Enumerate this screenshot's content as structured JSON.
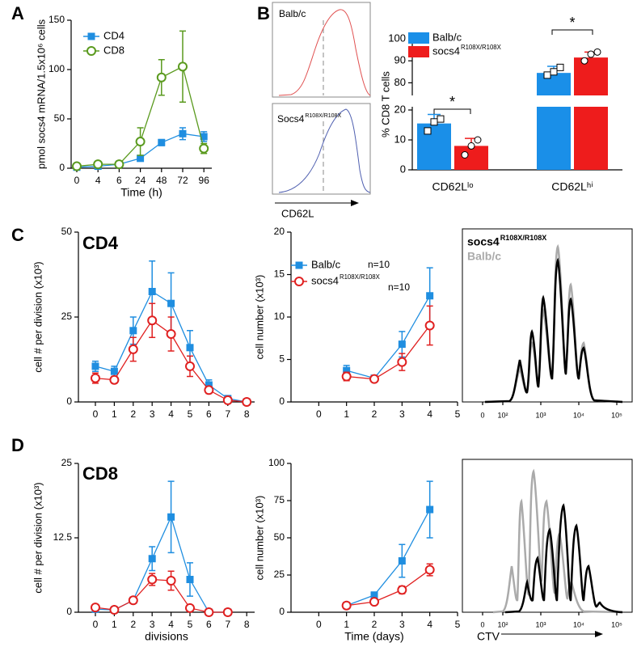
{
  "chart_data": [
    {
      "type": "line",
      "panel": "A",
      "ylabel": "pmol socs4 mRNA/1.5x10⁶ cells",
      "xlabel": "Time (h)",
      "categories": [
        "0",
        "4",
        "6",
        "24",
        "48",
        "72",
        "96"
      ],
      "ylim": [
        0,
        150
      ],
      "yticks": [
        0,
        50,
        100,
        150
      ],
      "legend": true,
      "series": [
        {
          "name": "CD4",
          "color": "#1f8ee0",
          "marker": "square",
          "values": [
            1,
            2,
            4,
            10,
            26,
            35,
            32
          ],
          "errors": [
            1,
            1,
            1,
            2,
            3,
            6,
            5
          ]
        },
        {
          "name": "CD8",
          "color": "#5a9a1e",
          "marker": "circle",
          "values": [
            2,
            4,
            4,
            27,
            92,
            103,
            20
          ],
          "errors": [
            1,
            1,
            1,
            14,
            18,
            36,
            5
          ]
        }
      ]
    },
    {
      "type": "bar",
      "panel": "B",
      "ylabel": "% CD8 T cells",
      "categories": [
        "CD62Lˡᵒ",
        "CD62Lʰⁱ"
      ],
      "ylim_lower": [
        0,
        20
      ],
      "yticks_lower": [
        0,
        10,
        20
      ],
      "ylim_upper": [
        75,
        100
      ],
      "yticks_upper": [
        80,
        90,
        100
      ],
      "annotations": [
        "*",
        "*"
      ],
      "series": [
        {
          "name": "Balb/c",
          "color": "#1a8fe8",
          "values": [
            15.5,
            84.5
          ],
          "errors": [
            3,
            3
          ],
          "points": [
            [
              13,
              16,
              17
            ],
            [
              83.5,
              85,
              87
            ]
          ]
        },
        {
          "name": "socs4",
          "name_sup": "R108X/R108X",
          "color": "#ee1c1c",
          "values": [
            8,
            91.5
          ],
          "errors": [
            2.5,
            2.5
          ],
          "points": [
            [
              5,
              8,
              10
            ],
            [
              90,
              93,
              94
            ]
          ]
        }
      ]
    },
    {
      "type": "line",
      "panel": "C",
      "title": "CD4",
      "ylabel": "cell # per division (x10³)",
      "categories": [
        "0",
        "1",
        "2",
        "3",
        "4",
        "5",
        "6",
        "7",
        "8"
      ],
      "ylim": [
        0,
        50
      ],
      "yticks": [
        0,
        25,
        50
      ],
      "series": [
        {
          "name": "Balb/c",
          "color": "#1f8ee0",
          "marker": "square",
          "values": [
            10.5,
            9,
            21,
            32.5,
            29,
            16,
            5,
            1,
            0
          ],
          "errors": [
            1.5,
            1.5,
            4,
            9,
            9,
            5,
            1.5,
            0.5,
            0.3
          ]
        },
        {
          "name": "socs4",
          "name_sup": "R108X/R108X",
          "color": "#e02020",
          "marker": "circle",
          "values": [
            7,
            6.5,
            15.5,
            24,
            20,
            10.5,
            3.5,
            0.5,
            0
          ],
          "errors": [
            1.5,
            1,
            3.5,
            5,
            5,
            3,
            1,
            0.3,
            0.2
          ]
        }
      ]
    },
    {
      "type": "line",
      "ylabel": "cell number (x10³)",
      "x": [
        1,
        2,
        3,
        4
      ],
      "xlim": [
        -1,
        5
      ],
      "xticks": [
        0,
        1,
        2,
        3,
        4,
        5
      ],
      "ylim": [
        0,
        20
      ],
      "yticks": [
        0,
        5,
        10,
        15,
        20
      ],
      "legend": true,
      "series": [
        {
          "name": "Balb/c",
          "note": "n=10",
          "color": "#1f8ee0",
          "marker": "square",
          "values": [
            3.7,
            2.8,
            6.8,
            12.5
          ],
          "errors": [
            0.6,
            0.3,
            1.5,
            3.3
          ]
        },
        {
          "name": "socs4",
          "name_sup": "R108X/R108X",
          "note": "n=10",
          "color": "#e02020",
          "marker": "circle",
          "values": [
            3,
            2.7,
            4.7,
            9
          ],
          "errors": [
            0.5,
            0.2,
            1,
            2.3
          ]
        }
      ]
    },
    {
      "type": "line",
      "panel": "D",
      "title": "CD8",
      "ylabel": "cell # per division (x10³)",
      "xlabel": "divisions",
      "categories": [
        "0",
        "1",
        "2",
        "3",
        "4",
        "5",
        "6",
        "7",
        "8"
      ],
      "ylim": [
        0,
        25
      ],
      "yticks": [
        0,
        12.5,
        25
      ],
      "series": [
        {
          "name": "Balb/c",
          "color": "#1f8ee0",
          "marker": "square",
          "values": [
            0.5,
            0.4,
            2,
            9,
            16,
            5.5,
            0,
            0,
            null
          ],
          "errors": [
            0.3,
            0.3,
            0.3,
            2,
            6,
            2.8,
            0.1,
            0.1,
            null
          ]
        },
        {
          "name": "socs4",
          "name_sup": "R108X/R108X",
          "color": "#e02020",
          "marker": "circle",
          "values": [
            0.8,
            0.4,
            2,
            5.5,
            5.3,
            0.7,
            0,
            0,
            null
          ],
          "errors": [
            0.3,
            0.3,
            0.3,
            1,
            1.6,
            0.3,
            0.1,
            0.1,
            null
          ]
        }
      ]
    },
    {
      "type": "line",
      "ylabel": "cell number (x10³)",
      "xlabel": "Time (days)",
      "x": [
        1,
        2,
        3,
        4
      ],
      "xlim": [
        -1,
        5
      ],
      "xticks": [
        0,
        1,
        2,
        3,
        4,
        5
      ],
      "ylim": [
        0,
        100
      ],
      "yticks": [
        0,
        25,
        50,
        75,
        100
      ],
      "series": [
        {
          "name": "Balb/c",
          "color": "#1f8ee0",
          "marker": "square",
          "values": [
            4.5,
            11.5,
            34.5,
            69
          ],
          "errors": [
            1,
            2,
            11,
            19
          ]
        },
        {
          "name": "socs4",
          "name_sup": "R108X/R108X",
          "color": "#e02020",
          "marker": "circle",
          "values": [
            4.5,
            7,
            15,
            28.5
          ],
          "errors": [
            1,
            1,
            2.5,
            4
          ]
        }
      ]
    }
  ],
  "flow": {
    "top_label": "Balb/c",
    "bottom_label": "Socs4",
    "bottom_label_sup": "R108X/R108X",
    "xlabel": "CD62L"
  },
  "ctv": {
    "xticks": [
      0,
      {
        "value": 100,
        "label": "10²"
      },
      {
        "value": 1000,
        "label": "10³"
      },
      {
        "value": 10000,
        "label": "10⁴"
      },
      {
        "value": 100000,
        "label": "10⁵"
      }
    ],
    "legend": [
      {
        "name": "socs4",
        "sup": "R108X/R108X",
        "color": "#000000"
      },
      {
        "name": "Balb/c",
        "color": "#aaaaaa"
      }
    ],
    "xlabel": "CTV"
  }
}
